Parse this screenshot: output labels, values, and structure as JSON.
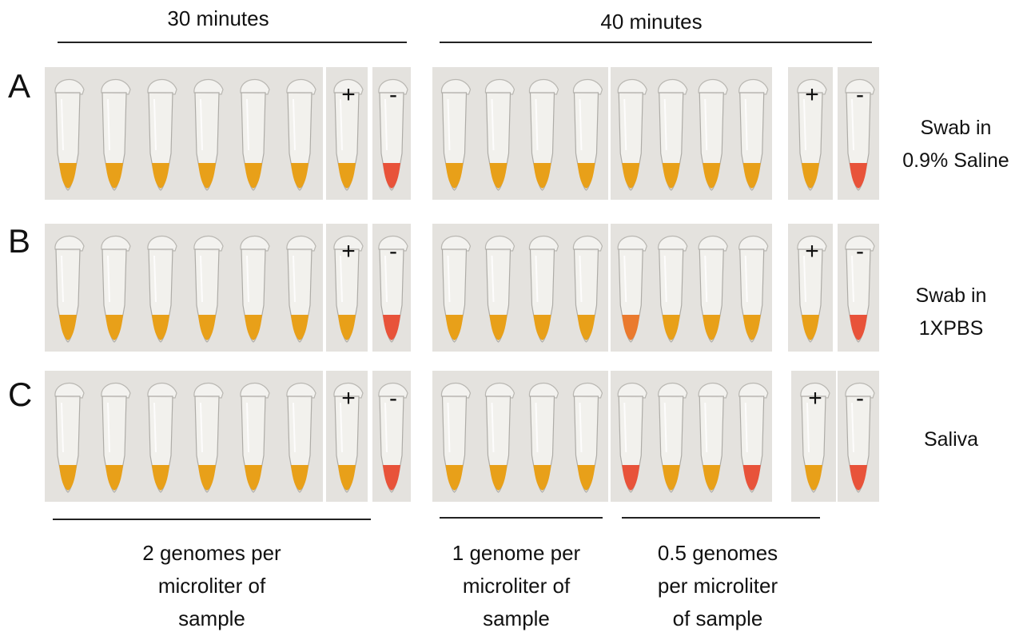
{
  "headers": {
    "left": "30 minutes",
    "right": "40 minutes"
  },
  "rows": [
    {
      "id": "A",
      "label": "A",
      "sample": "Swab in\n0.9% Saline",
      "t30": [
        "orange",
        "orange",
        "orange",
        "orange",
        "orange",
        "orange"
      ],
      "t40a": [
        "orange",
        "orange",
        "orange",
        "orange"
      ],
      "t40b": [
        "orange",
        "orange",
        "orange",
        "orange"
      ],
      "control_pos": "orange",
      "control_neg": "red"
    },
    {
      "id": "B",
      "label": "B",
      "sample": "Swab in\n1XPBS",
      "t30": [
        "orange",
        "orange",
        "orange",
        "orange",
        "orange",
        "orange"
      ],
      "t40a": [
        "orange",
        "orange",
        "orange",
        "orange"
      ],
      "t40b": [
        "orange-red",
        "orange",
        "orange",
        "orange"
      ],
      "control_pos": "orange",
      "control_neg": "red"
    },
    {
      "id": "C",
      "label": "C",
      "sample": "Saliva",
      "t30": [
        "orange",
        "orange",
        "orange",
        "orange",
        "orange",
        "orange"
      ],
      "t40a": [
        "orange",
        "orange",
        "orange",
        "orange"
      ],
      "t40b": [
        "red",
        "orange",
        "orange",
        "red"
      ],
      "control_pos": "orange",
      "control_neg": "red"
    }
  ],
  "controls": {
    "positive": "+",
    "negative": "-"
  },
  "footers": {
    "left": "2 genomes per\nmicroliter of\nsample",
    "mid": "1 genome per\nmicroliter of\nsample",
    "right": "0.5 genomes\nper microliter\nof sample"
  },
  "colors": {
    "orange": "#e8a019",
    "orange-red": "#ea7a2e",
    "red": "#e8533a",
    "photo_bg": "#e4e2de"
  }
}
